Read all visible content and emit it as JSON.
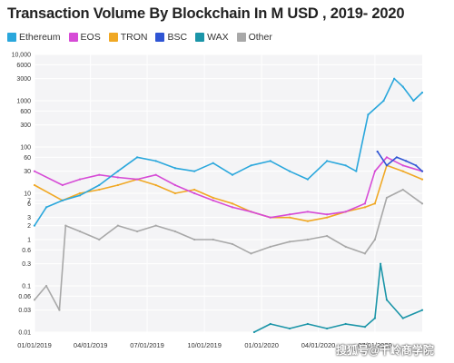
{
  "chart_data": {
    "type": "line",
    "title": "Transaction Volume By Blockchain In M USD , 2019- 2020",
    "y_scale": "log",
    "ylim": [
      0.01,
      10000
    ],
    "y_ticks": [
      0.01,
      0.03,
      0.06,
      0.1,
      0.3,
      0.6,
      1,
      2,
      3,
      6,
      7,
      10,
      30,
      60,
      100,
      300,
      600,
      1000,
      3000,
      6000,
      10000
    ],
    "y_tick_labels": [
      "0.01",
      "0.03",
      "0.06",
      "0.1",
      "0.3",
      "0.6",
      "1",
      "2",
      "3",
      "6",
      "7",
      "10",
      "30",
      "60",
      "100",
      "300",
      "600",
      "1000",
      "3000",
      "6000",
      "10,000"
    ],
    "x_range": [
      "2019-01-01",
      "2020-09-15"
    ],
    "x_ticks": [
      "2019-01-01",
      "2019-04-01",
      "2019-07-01",
      "2019-10-01",
      "2020-01-01",
      "2020-04-01",
      "2020-07-01"
    ],
    "x_tick_labels": [
      "01/01/2019",
      "04/01/2019",
      "07/01/2019",
      "10/01/2019",
      "01/01/2020",
      "04/01/2020",
      "07/01/2020"
    ],
    "grid": true,
    "legend_position": "top-left",
    "series": [
      {
        "name": "Ethereum",
        "color": "#2aa7dc",
        "x": [
          "2019-01-01",
          "2019-01-20",
          "2019-02-15",
          "2019-03-15",
          "2019-04-15",
          "2019-05-15",
          "2019-06-15",
          "2019-07-15",
          "2019-08-15",
          "2019-09-15",
          "2019-10-15",
          "2019-11-15",
          "2019-12-15",
          "2020-01-15",
          "2020-02-15",
          "2020-03-15",
          "2020-04-15",
          "2020-05-15",
          "2020-06-01",
          "2020-06-20",
          "2020-07-15",
          "2020-08-01",
          "2020-08-15",
          "2020-09-01",
          "2020-09-15"
        ],
        "y": [
          2,
          5,
          7,
          9,
          15,
          30,
          60,
          50,
          35,
          30,
          45,
          25,
          40,
          50,
          30,
          20,
          50,
          40,
          30,
          500,
          1000,
          3000,
          2000,
          1000,
          1500
        ]
      },
      {
        "name": "EOS",
        "color": "#d64bd6",
        "x": [
          "2019-01-01",
          "2019-02-15",
          "2019-03-15",
          "2019-04-15",
          "2019-05-15",
          "2019-06-15",
          "2019-07-15",
          "2019-08-15",
          "2019-09-15",
          "2019-10-15",
          "2019-11-15",
          "2019-12-15",
          "2020-01-15",
          "2020-02-15",
          "2020-03-15",
          "2020-04-15",
          "2020-05-15",
          "2020-06-15",
          "2020-07-01",
          "2020-07-20",
          "2020-08-15",
          "2020-09-15"
        ],
        "y": [
          30,
          15,
          20,
          25,
          22,
          20,
          25,
          15,
          10,
          7,
          5,
          4,
          3,
          3.5,
          4,
          3.5,
          4,
          6,
          30,
          60,
          40,
          30
        ]
      },
      {
        "name": "TRON",
        "color": "#f0a824",
        "x": [
          "2019-01-01",
          "2019-02-15",
          "2019-03-15",
          "2019-04-15",
          "2019-05-15",
          "2019-06-15",
          "2019-07-15",
          "2019-08-15",
          "2019-09-15",
          "2019-10-15",
          "2019-11-15",
          "2019-12-15",
          "2020-01-15",
          "2020-02-15",
          "2020-03-15",
          "2020-04-15",
          "2020-05-15",
          "2020-06-15",
          "2020-07-01",
          "2020-07-20",
          "2020-08-15",
          "2020-09-15"
        ],
        "y": [
          15,
          7,
          10,
          12,
          15,
          20,
          15,
          10,
          12,
          8,
          6,
          4,
          3,
          3,
          2.5,
          3,
          4,
          5,
          6,
          40,
          30,
          20
        ]
      },
      {
        "name": "BSC",
        "color": "#2f55d4",
        "x": [
          "2020-07-05",
          "2020-07-20",
          "2020-08-05",
          "2020-08-20",
          "2020-09-05",
          "2020-09-15"
        ],
        "y": [
          80,
          40,
          60,
          50,
          40,
          30
        ]
      },
      {
        "name": "WAX",
        "color": "#1b95a8",
        "x": [
          "2019-12-20",
          "2020-01-15",
          "2020-02-15",
          "2020-03-15",
          "2020-04-15",
          "2020-05-15",
          "2020-06-15",
          "2020-07-01",
          "2020-07-10",
          "2020-07-20",
          "2020-08-15",
          "2020-09-15"
        ],
        "y": [
          0.01,
          0.015,
          0.012,
          0.015,
          0.012,
          0.015,
          0.013,
          0.02,
          0.3,
          0.05,
          0.02,
          0.03
        ]
      },
      {
        "name": "Other",
        "color": "#a8a8a8",
        "x": [
          "2019-01-01",
          "2019-01-20",
          "2019-02-10",
          "2019-02-20",
          "2019-03-15",
          "2019-04-15",
          "2019-05-15",
          "2019-06-15",
          "2019-07-15",
          "2019-08-15",
          "2019-09-15",
          "2019-10-15",
          "2019-11-15",
          "2019-12-15",
          "2020-01-15",
          "2020-02-15",
          "2020-03-15",
          "2020-04-15",
          "2020-05-15",
          "2020-06-15",
          "2020-07-01",
          "2020-07-20",
          "2020-08-15",
          "2020-09-15"
        ],
        "y": [
          0.05,
          0.1,
          0.03,
          2,
          1.5,
          1,
          2,
          1.5,
          2,
          1.5,
          1,
          1,
          0.8,
          0.5,
          0.7,
          0.9,
          1,
          1.2,
          0.7,
          0.5,
          1,
          8,
          12,
          6
        ]
      }
    ]
  }
}
